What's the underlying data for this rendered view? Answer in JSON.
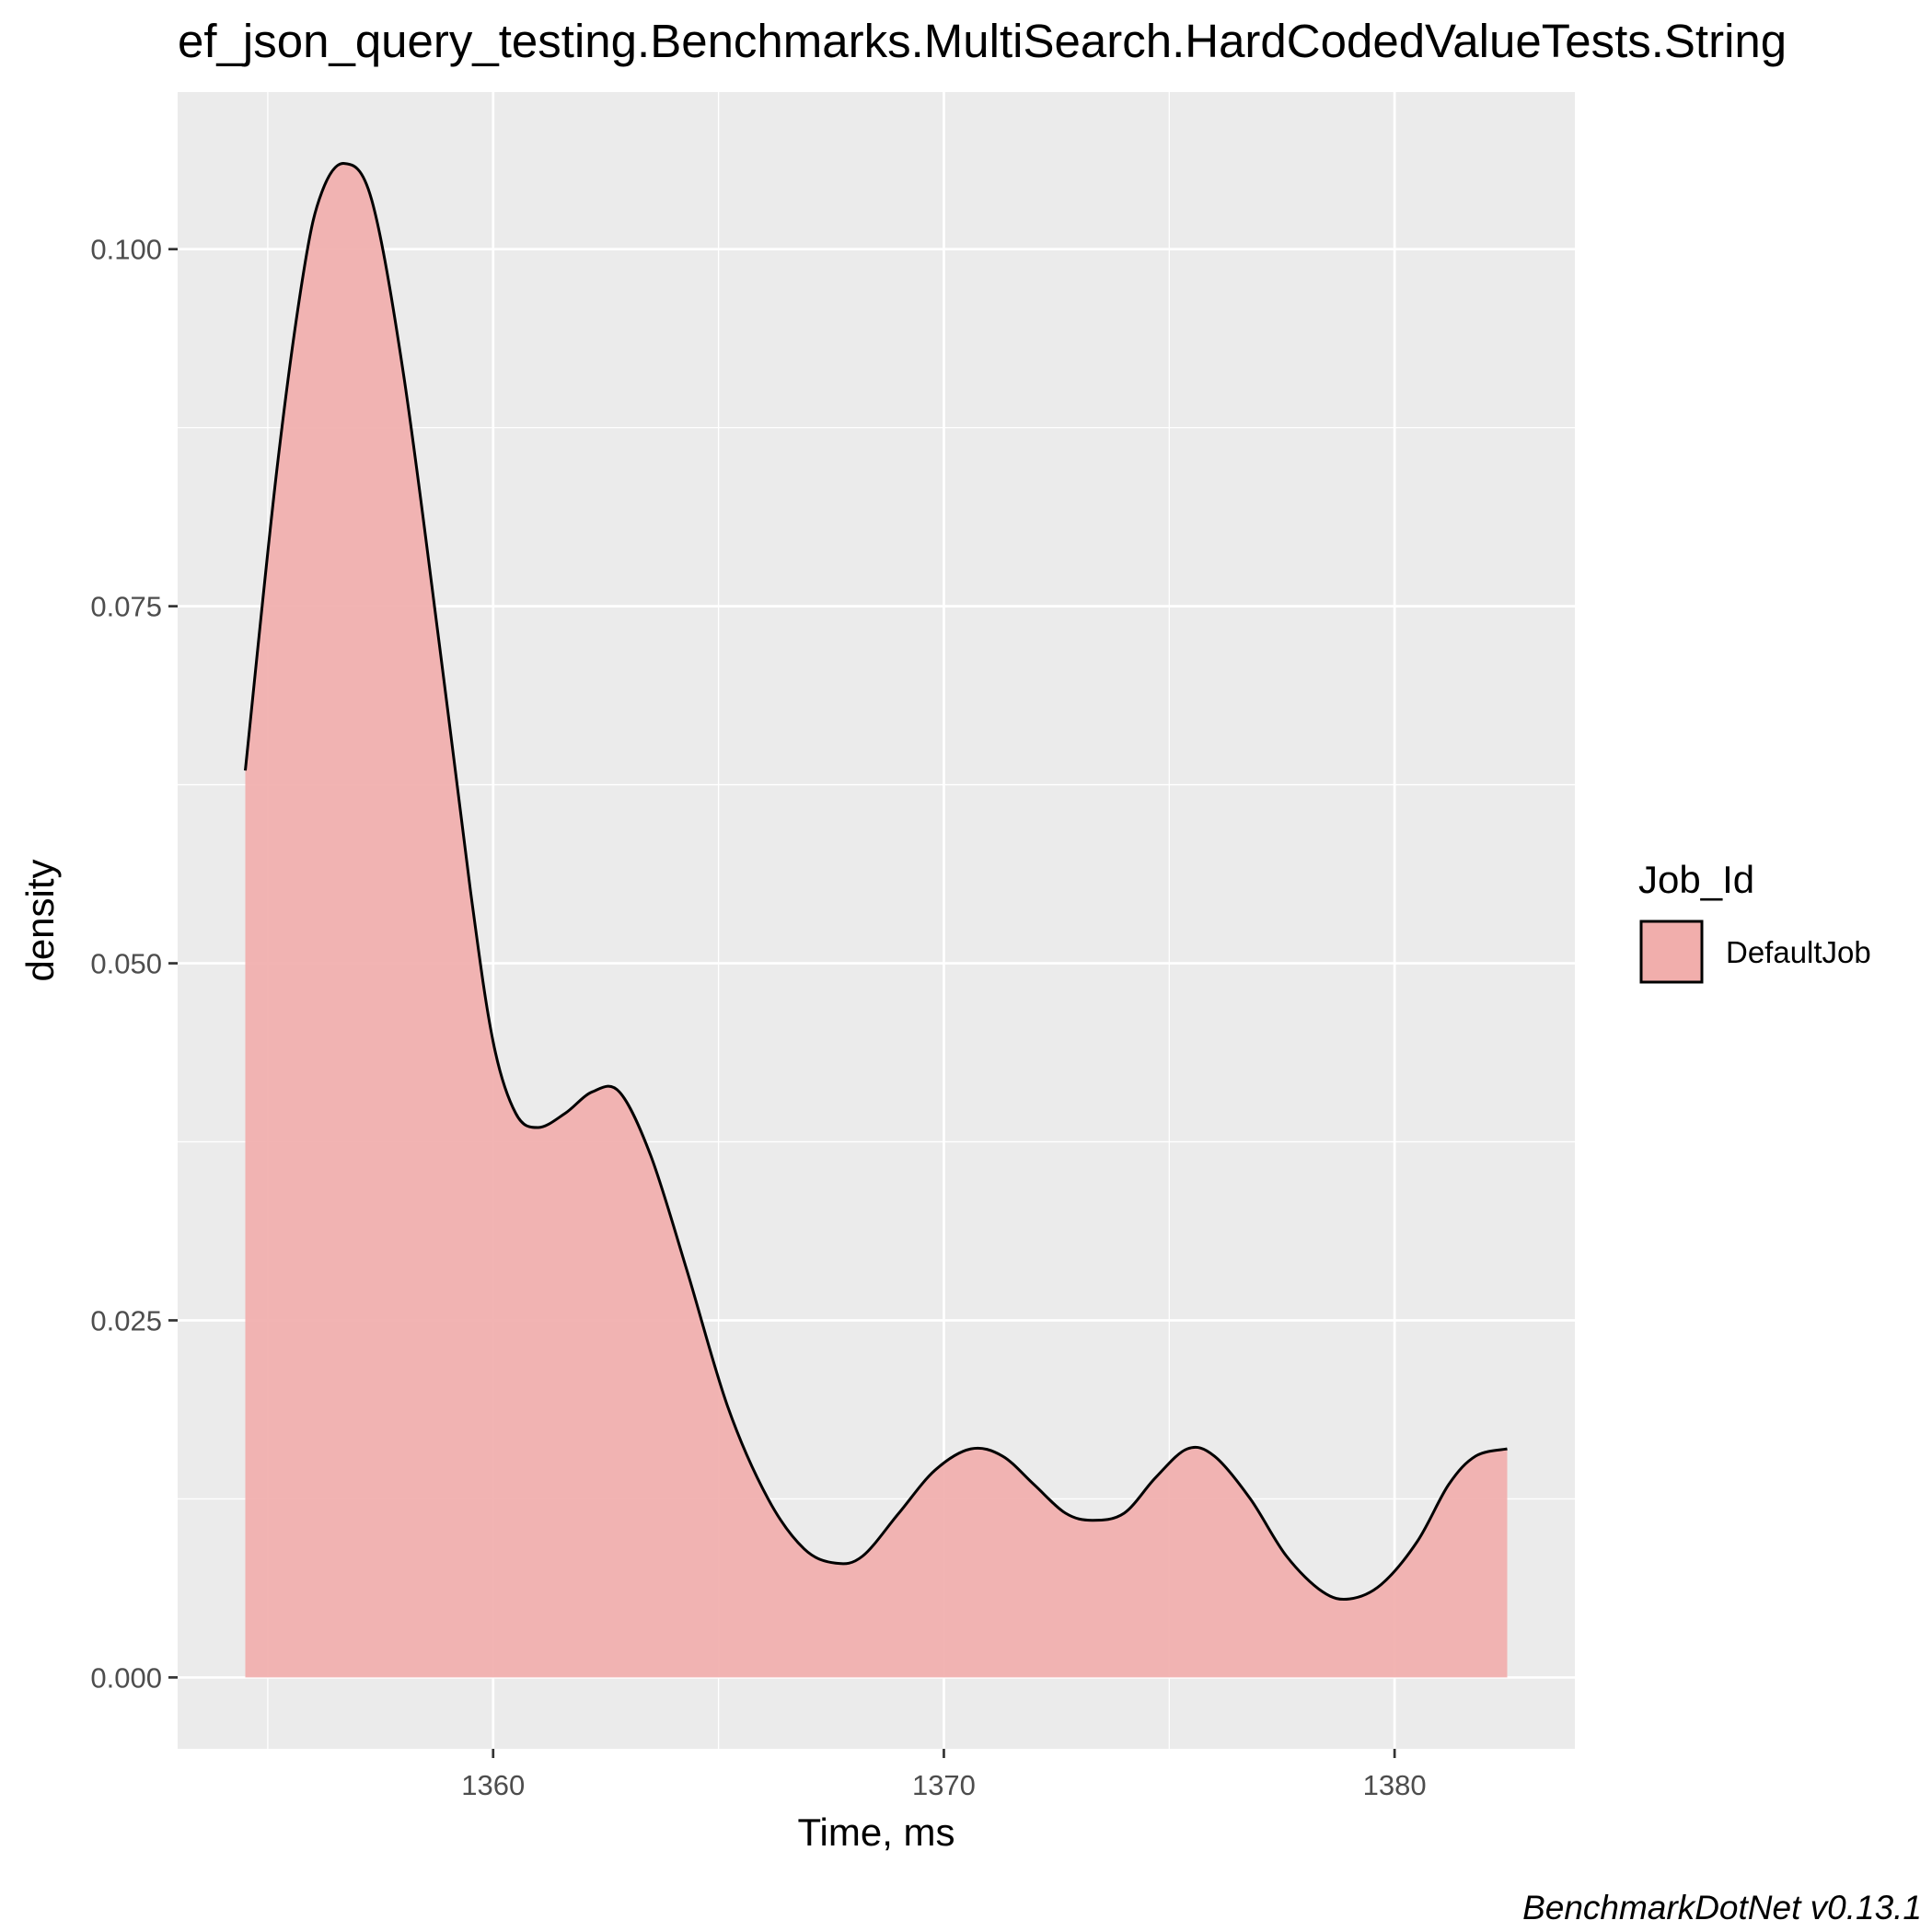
{
  "chart_data": {
    "type": "area",
    "title": "ef_json_query_testing.Benchmarks.MultiSearch.HardCodedValueTests.String",
    "xlabel": "Time, ms",
    "ylabel": "density",
    "xlim": [
      1353,
      1384
    ],
    "ylim": [
      -0.005,
      0.111
    ],
    "x_ticks": [
      1360,
      1370,
      1380
    ],
    "x_tick_labels": [
      "1360",
      "1370",
      "1380"
    ],
    "x_minor_ticks": [
      1355,
      1365,
      1375
    ],
    "y_ticks": [
      0.0,
      0.025,
      0.05,
      0.075,
      0.1
    ],
    "y_tick_labels": [
      "0.000",
      "0.025",
      "0.050",
      "0.075",
      "0.100"
    ],
    "y_minor_ticks": [
      0.0125,
      0.0375,
      0.0625,
      0.0875
    ],
    "grid": true,
    "legend": {
      "title": "Job_Id",
      "position": "right",
      "entries": [
        {
          "label": "DefaultJob",
          "color": "#f1aeac"
        }
      ]
    },
    "series": [
      {
        "name": "DefaultJob",
        "fill": "#f1aeac",
        "stroke": "#000000",
        "x": [
          1354.5,
          1355.2,
          1355.8,
          1356.2,
          1356.7,
          1357.3,
          1358.0,
          1358.8,
          1359.5,
          1360.0,
          1360.5,
          1361.0,
          1361.6,
          1362.2,
          1362.8,
          1363.5,
          1364.3,
          1365.2,
          1366.1,
          1366.9,
          1367.6,
          1368.2,
          1369.0,
          1369.8,
          1370.6,
          1371.3,
          1372.0,
          1372.7,
          1373.3,
          1374.0,
          1374.7,
          1375.4,
          1376.0,
          1376.8,
          1377.6,
          1378.4,
          1379.0,
          1379.7,
          1380.5,
          1381.2,
          1381.8,
          1382.5
        ],
        "y": [
          0.0635,
          0.0845,
          0.0985,
          0.104,
          0.106,
          0.1035,
          0.0915,
          0.0725,
          0.055,
          0.0445,
          0.0395,
          0.0385,
          0.0395,
          0.041,
          0.041,
          0.0365,
          0.0285,
          0.019,
          0.0125,
          0.009,
          0.008,
          0.0085,
          0.0115,
          0.0145,
          0.016,
          0.0155,
          0.0135,
          0.0115,
          0.011,
          0.0115,
          0.014,
          0.016,
          0.0155,
          0.0125,
          0.0085,
          0.006,
          0.0055,
          0.0065,
          0.0095,
          0.0135,
          0.0155,
          0.016
        ]
      }
    ]
  },
  "caption": "BenchmarkDotNet v0.13.1"
}
